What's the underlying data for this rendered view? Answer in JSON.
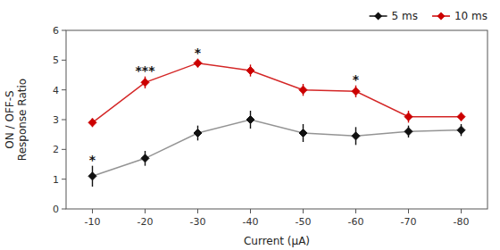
{
  "chart_data": {
    "type": "line",
    "x": [
      -10,
      -20,
      -30,
      -40,
      -50,
      -60,
      -70,
      -80
    ],
    "xlabel": "Current (μA)",
    "ylabel": "ON / OFF-S\nResponse Ratio",
    "xlim": [
      -5,
      -85
    ],
    "xticks": [
      -10,
      -20,
      -30,
      -40,
      -50,
      -60,
      -70,
      -80
    ],
    "ylim": [
      0,
      6
    ],
    "yticks": [
      0,
      1,
      2,
      3,
      4,
      5,
      6
    ],
    "grid": false,
    "legend": "upper right",
    "marker": "diamond",
    "series": [
      {
        "name": "5 ms",
        "color": "#111111",
        "values": [
          1.1,
          1.7,
          2.55,
          3.0,
          2.55,
          2.45,
          2.6,
          2.65
        ],
        "errors": [
          0.35,
          0.25,
          0.25,
          0.3,
          0.3,
          0.3,
          0.2,
          0.2
        ]
      },
      {
        "name": "10 ms",
        "color": "#cc0000",
        "values": [
          2.9,
          4.25,
          4.9,
          4.65,
          4.0,
          3.95,
          3.1,
          3.1
        ],
        "errors": [
          0.15,
          0.2,
          0.15,
          0.2,
          0.2,
          0.2,
          0.2,
          0.15
        ]
      }
    ],
    "annotations": [
      {
        "text": "*",
        "x": -10,
        "series": "5 ms"
      },
      {
        "text": "***",
        "x": -20,
        "series": "10 ms"
      },
      {
        "text": "*",
        "x": -30,
        "series": "10 ms"
      },
      {
        "text": "*",
        "x": -60,
        "series": "10 ms"
      }
    ]
  }
}
